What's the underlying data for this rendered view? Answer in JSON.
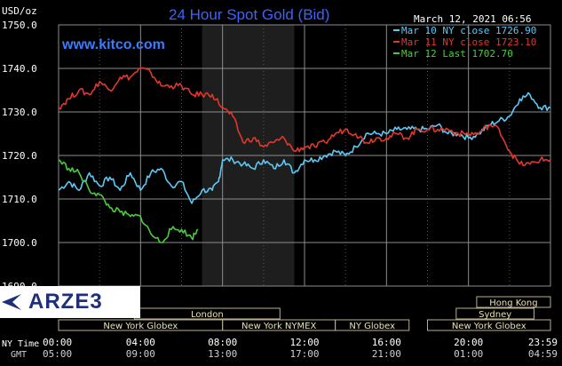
{
  "header": {
    "title": "24 Hour Spot Gold (Bid)",
    "unit": "USD/oz",
    "datetime": "March 12, 2021 06:56",
    "source": "www.kitco.com"
  },
  "logo": {
    "text": "ARZE3"
  },
  "colors": {
    "mar10": "#5ec8f5",
    "mar11": "#e2382b",
    "mar12": "#4ccc3c",
    "title": "#3a63ff",
    "grid": "#8c8c8c"
  },
  "legend": [
    {
      "label": "Mar 10 NY close 1726.90",
      "series": 0
    },
    {
      "label": "Mar 11 NY close 1723.10",
      "series": 1
    },
    {
      "label": "Mar 12 Last 1702.70",
      "series": 2
    }
  ],
  "time_axis": {
    "ny_label": "NY Time",
    "gmt_label": "GMT",
    "ny_ticks": [
      "00:00",
      "04:00",
      "08:00",
      "12:00",
      "16:00",
      "20:00",
      "23:59"
    ],
    "gmt_ticks": [
      "05:00",
      "09:00",
      "13:00",
      "17:00",
      "21:00",
      "01:00",
      "04:59"
    ]
  },
  "sessions": [
    {
      "label": "Hong Kong",
      "start": 20.4,
      "end": 24.0,
      "row": 0
    },
    {
      "label": "",
      "start": 0.0,
      "end": 3.7,
      "row": 0
    },
    {
      "label": "London",
      "start": 3.7,
      "end": 10.8,
      "row": 1
    },
    {
      "label": "Sydney",
      "start": 19.4,
      "end": 23.2,
      "row": 1
    },
    {
      "label": "New York Globex",
      "start": 0.0,
      "end": 8.0,
      "row": 2
    },
    {
      "label": "New York NYMEX",
      "start": 8.0,
      "end": 13.5,
      "row": 2
    },
    {
      "label": "NY Globex",
      "start": 13.5,
      "end": 17.1,
      "row": 2
    },
    {
      "label": "New York Globex",
      "start": 18.0,
      "end": 24.0,
      "row": 2
    }
  ],
  "chart_data": {
    "type": "line",
    "title": "24 Hour Spot Gold (Bid)",
    "ylabel": "USD/oz",
    "xlabel": "NY Time",
    "xlim": [
      0,
      24
    ],
    "ylim": [
      1690,
      1750
    ],
    "y_ticks": [
      "1690.0",
      "1700.0",
      "1710.0",
      "1720.0",
      "1730.0",
      "1740.0",
      "1750.0"
    ],
    "grid": true,
    "legend_position": "top-right",
    "shaded_region": [
      7.0,
      11.5
    ],
    "series": [
      {
        "name": "Mar 10 NY close 1726.90",
        "x": [
          0,
          0.5,
          1.0,
          1.5,
          2.0,
          2.5,
          3.0,
          3.5,
          4.0,
          4.5,
          5.0,
          5.5,
          6.0,
          6.5,
          7.0,
          7.5,
          7.8,
          8.0,
          8.5,
          9.0,
          9.5,
          10.0,
          10.5,
          11.0,
          11.5,
          12.0,
          12.5,
          13.0,
          13.5,
          14.0,
          14.5,
          15.0,
          15.5,
          16.0,
          16.5,
          17.0,
          17.5,
          18.0,
          18.5,
          19.0,
          19.5,
          20.0,
          20.5,
          21.0,
          21.5,
          22.0,
          22.5,
          23.0,
          23.5,
          24.0
        ],
        "values": [
          1712,
          1714,
          1712,
          1716,
          1713,
          1715,
          1712,
          1716,
          1712,
          1716,
          1717,
          1713,
          1714,
          1709,
          1712,
          1712,
          1714,
          1719,
          1719,
          1718,
          1717,
          1719,
          1717,
          1719,
          1716,
          1719,
          1719,
          1720,
          1721,
          1720,
          1722,
          1725,
          1725,
          1725,
          1726,
          1726,
          1726,
          1726,
          1727,
          1725,
          1725,
          1724,
          1725,
          1727,
          1728,
          1729,
          1733,
          1734,
          1731,
          1731
        ]
      },
      {
        "name": "Mar 11 NY close 1723.10",
        "x": [
          0,
          0.5,
          1.0,
          1.5,
          2.0,
          2.5,
          3.0,
          3.5,
          4.0,
          4.5,
          5.0,
          5.5,
          6.0,
          6.5,
          7.0,
          7.5,
          8.0,
          8.5,
          9.0,
          9.5,
          10.0,
          10.5,
          11.0,
          11.5,
          12.0,
          12.5,
          13.0,
          13.5,
          14.0,
          14.5,
          15.0,
          15.5,
          16.0,
          16.5,
          17.0,
          17.5,
          18.0,
          18.5,
          19.0,
          19.5,
          20.0,
          20.5,
          21.0,
          21.5,
          22.0,
          22.5,
          23.0,
          23.5,
          24.0
        ],
        "values": [
          1731,
          1733,
          1735,
          1734,
          1737,
          1735,
          1738,
          1738,
          1740,
          1739,
          1736,
          1736,
          1736,
          1734,
          1734,
          1734,
          1731,
          1729,
          1723,
          1724,
          1722,
          1723,
          1724,
          1721,
          1722,
          1722,
          1723,
          1725,
          1726,
          1725,
          1723,
          1724,
          1724,
          1725,
          1724,
          1726,
          1726,
          1726,
          1726,
          1725,
          1725,
          1725,
          1727,
          1726,
          1721,
          1718,
          1718,
          1719,
          1719
        ]
      },
      {
        "name": "Mar 12 Last 1702.70",
        "x": [
          0,
          0.5,
          1.0,
          1.5,
          2.0,
          2.5,
          3.0,
          3.5,
          4.0,
          4.5,
          5.0,
          5.5,
          6.0,
          6.5,
          6.8
        ],
        "values": [
          1719,
          1717,
          1716,
          1712,
          1711,
          1708,
          1707,
          1706,
          1706,
          1702,
          1700,
          1703,
          1703,
          1701,
          1703
        ]
      }
    ]
  }
}
